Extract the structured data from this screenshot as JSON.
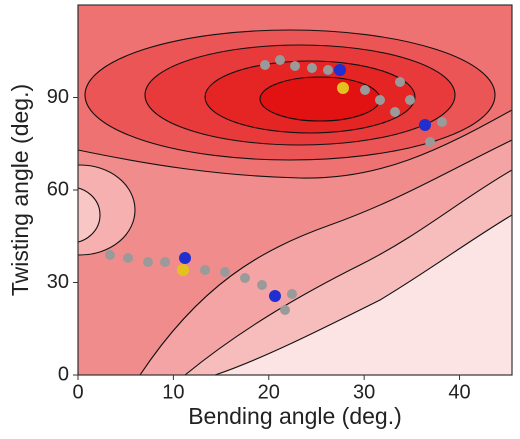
{
  "chart_data": {
    "type": "contour",
    "xlabel": "Bending angle (deg.)",
    "ylabel": "Twisting angle (deg.)",
    "xlim": [
      0,
      45.5
    ],
    "ylim": [
      0,
      120
    ],
    "xticks": [
      0,
      10,
      20,
      30,
      40
    ],
    "yticks": [
      0,
      30,
      60,
      90
    ]
  }
}
